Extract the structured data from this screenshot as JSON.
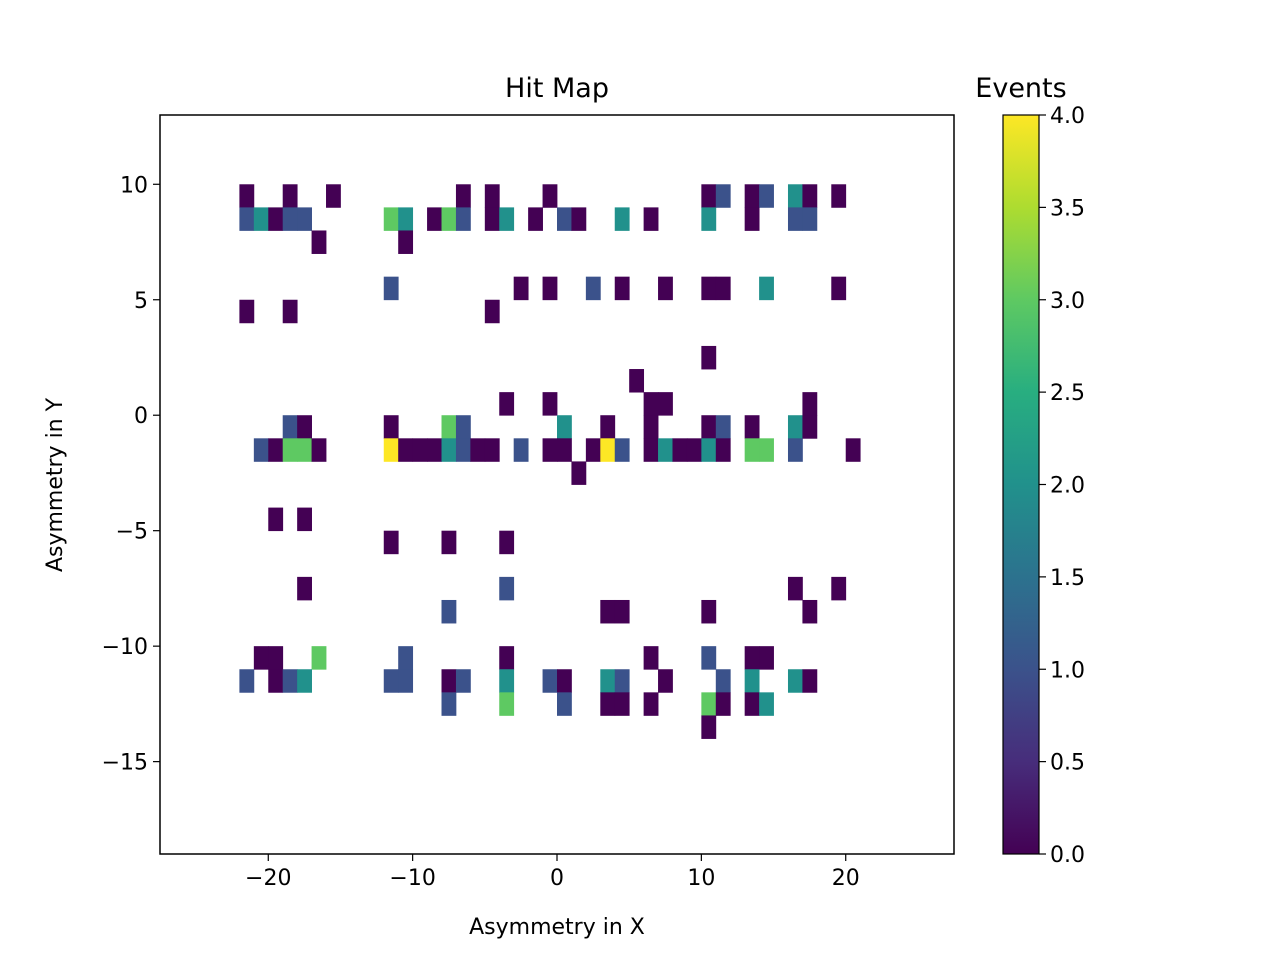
{
  "chart_data": {
    "type": "heatmap",
    "title": "Hit Map",
    "xlabel": "Asymmetry in X",
    "ylabel": "Asymmetry in Y",
    "xlim": [
      -27.5,
      27.5
    ],
    "ylim": [
      -19.0,
      13.0
    ],
    "xticks": [
      -20,
      -10,
      0,
      10,
      20
    ],
    "yticks": [
      -15,
      -10,
      -5,
      0,
      5,
      10
    ],
    "xtick_labels": [
      "−20",
      "−10",
      "0",
      "10",
      "20"
    ],
    "ytick_labels": [
      "−15",
      "−10",
      "−5",
      "0",
      "5",
      "10"
    ],
    "bin_width": 1.0,
    "bin_height": 1.0,
    "colormap": "viridis",
    "colorbar": {
      "label": "Events",
      "range": [
        0,
        4
      ],
      "ticks": [
        0.0,
        0.5,
        1.0,
        1.5,
        2.0,
        2.5,
        3.0,
        3.5,
        4.0
      ],
      "tick_labels": [
        "0.0",
        "0.5",
        "1.0",
        "1.5",
        "2.0",
        "2.5",
        "3.0",
        "3.5",
        "4.0"
      ]
    },
    "grid": false,
    "bins": [
      {
        "x": -21.5,
        "y": 9.5,
        "value": 0
      },
      {
        "x": -18.5,
        "y": 9.5,
        "value": 0
      },
      {
        "x": -15.5,
        "y": 9.5,
        "value": 0
      },
      {
        "x": -6.5,
        "y": 9.5,
        "value": 0
      },
      {
        "x": -4.5,
        "y": 9.5,
        "value": 0
      },
      {
        "x": -0.5,
        "y": 9.5,
        "value": 0
      },
      {
        "x": 10.5,
        "y": 9.5,
        "value": 0
      },
      {
        "x": 11.5,
        "y": 9.5,
        "value": 1
      },
      {
        "x": 13.5,
        "y": 9.5,
        "value": 0
      },
      {
        "x": 14.5,
        "y": 9.5,
        "value": 1
      },
      {
        "x": 16.5,
        "y": 9.5,
        "value": 2
      },
      {
        "x": 17.5,
        "y": 9.5,
        "value": 0
      },
      {
        "x": 19.5,
        "y": 9.5,
        "value": 0
      },
      {
        "x": -21.5,
        "y": 8.5,
        "value": 1
      },
      {
        "x": -20.5,
        "y": 8.5,
        "value": 2
      },
      {
        "x": -19.5,
        "y": 8.5,
        "value": 0
      },
      {
        "x": -18.5,
        "y": 8.5,
        "value": 1
      },
      {
        "x": -17.5,
        "y": 8.5,
        "value": 1
      },
      {
        "x": -11.5,
        "y": 8.5,
        "value": 3
      },
      {
        "x": -10.5,
        "y": 8.5,
        "value": 2
      },
      {
        "x": -8.5,
        "y": 8.5,
        "value": 0
      },
      {
        "x": -7.5,
        "y": 8.5,
        "value": 3
      },
      {
        "x": -6.5,
        "y": 8.5,
        "value": 1
      },
      {
        "x": -4.5,
        "y": 8.5,
        "value": 0
      },
      {
        "x": -3.5,
        "y": 8.5,
        "value": 2
      },
      {
        "x": -1.5,
        "y": 8.5,
        "value": 0
      },
      {
        "x": 0.5,
        "y": 8.5,
        "value": 1
      },
      {
        "x": 1.5,
        "y": 8.5,
        "value": 0
      },
      {
        "x": 4.5,
        "y": 8.5,
        "value": 2
      },
      {
        "x": 6.5,
        "y": 8.5,
        "value": 0
      },
      {
        "x": 10.5,
        "y": 8.5,
        "value": 2
      },
      {
        "x": 13.5,
        "y": 8.5,
        "value": 0
      },
      {
        "x": 16.5,
        "y": 8.5,
        "value": 1
      },
      {
        "x": 17.5,
        "y": 8.5,
        "value": 1
      },
      {
        "x": -16.5,
        "y": 7.5,
        "value": 0
      },
      {
        "x": -10.5,
        "y": 7.5,
        "value": 0
      },
      {
        "x": -11.5,
        "y": 5.5,
        "value": 1
      },
      {
        "x": -2.5,
        "y": 5.5,
        "value": 0
      },
      {
        "x": -0.5,
        "y": 5.5,
        "value": 0
      },
      {
        "x": 2.5,
        "y": 5.5,
        "value": 1
      },
      {
        "x": 4.5,
        "y": 5.5,
        "value": 0
      },
      {
        "x": 7.5,
        "y": 5.5,
        "value": 0
      },
      {
        "x": 10.5,
        "y": 5.5,
        "value": 0
      },
      {
        "x": 11.5,
        "y": 5.5,
        "value": 0
      },
      {
        "x": 14.5,
        "y": 5.5,
        "value": 2
      },
      {
        "x": 19.5,
        "y": 5.5,
        "value": 0
      },
      {
        "x": -21.5,
        "y": 4.5,
        "value": 0
      },
      {
        "x": -18.5,
        "y": 4.5,
        "value": 0
      },
      {
        "x": -4.5,
        "y": 4.5,
        "value": 0
      },
      {
        "x": 10.5,
        "y": 2.5,
        "value": 0
      },
      {
        "x": 5.5,
        "y": 1.5,
        "value": 0
      },
      {
        "x": -3.5,
        "y": 0.5,
        "value": 0
      },
      {
        "x": -0.5,
        "y": 0.5,
        "value": 0
      },
      {
        "x": 6.5,
        "y": 0.5,
        "value": 0
      },
      {
        "x": 7.5,
        "y": 0.5,
        "value": 0
      },
      {
        "x": 17.5,
        "y": 0.5,
        "value": 0
      },
      {
        "x": -18.5,
        "y": -0.5,
        "value": 1
      },
      {
        "x": -17.5,
        "y": -0.5,
        "value": 0
      },
      {
        "x": -11.5,
        "y": -0.5,
        "value": 0
      },
      {
        "x": -7.5,
        "y": -0.5,
        "value": 3
      },
      {
        "x": -6.5,
        "y": -0.5,
        "value": 1
      },
      {
        "x": 0.5,
        "y": -0.5,
        "value": 2
      },
      {
        "x": 3.5,
        "y": -0.5,
        "value": 0
      },
      {
        "x": 6.5,
        "y": -0.5,
        "value": 0
      },
      {
        "x": 10.5,
        "y": -0.5,
        "value": 0
      },
      {
        "x": 11.5,
        "y": -0.5,
        "value": 1
      },
      {
        "x": 13.5,
        "y": -0.5,
        "value": 0
      },
      {
        "x": 16.5,
        "y": -0.5,
        "value": 2
      },
      {
        "x": 17.5,
        "y": -0.5,
        "value": 0
      },
      {
        "x": -20.5,
        "y": -1.5,
        "value": 1
      },
      {
        "x": -19.5,
        "y": -1.5,
        "value": 0
      },
      {
        "x": -18.5,
        "y": -1.5,
        "value": 3
      },
      {
        "x": -17.5,
        "y": -1.5,
        "value": 3
      },
      {
        "x": -16.5,
        "y": -1.5,
        "value": 0
      },
      {
        "x": -11.5,
        "y": -1.5,
        "value": 4
      },
      {
        "x": -10.5,
        "y": -1.5,
        "value": 0
      },
      {
        "x": -9.5,
        "y": -1.5,
        "value": 0
      },
      {
        "x": -8.5,
        "y": -1.5,
        "value": 0
      },
      {
        "x": -7.5,
        "y": -1.5,
        "value": 2
      },
      {
        "x": -6.5,
        "y": -1.5,
        "value": 1
      },
      {
        "x": -5.5,
        "y": -1.5,
        "value": 0
      },
      {
        "x": -4.5,
        "y": -1.5,
        "value": 0
      },
      {
        "x": -2.5,
        "y": -1.5,
        "value": 1
      },
      {
        "x": -0.5,
        "y": -1.5,
        "value": 0
      },
      {
        "x": 0.5,
        "y": -1.5,
        "value": 0
      },
      {
        "x": 2.5,
        "y": -1.5,
        "value": 0
      },
      {
        "x": 3.5,
        "y": -1.5,
        "value": 4
      },
      {
        "x": 4.5,
        "y": -1.5,
        "value": 1
      },
      {
        "x": 6.5,
        "y": -1.5,
        "value": 0
      },
      {
        "x": 7.5,
        "y": -1.5,
        "value": 2
      },
      {
        "x": 8.5,
        "y": -1.5,
        "value": 0
      },
      {
        "x": 9.5,
        "y": -1.5,
        "value": 0
      },
      {
        "x": 10.5,
        "y": -1.5,
        "value": 2
      },
      {
        "x": 11.5,
        "y": -1.5,
        "value": 0
      },
      {
        "x": 13.5,
        "y": -1.5,
        "value": 3
      },
      {
        "x": 14.5,
        "y": -1.5,
        "value": 3
      },
      {
        "x": 16.5,
        "y": -1.5,
        "value": 1
      },
      {
        "x": 20.5,
        "y": -1.5,
        "value": 0
      },
      {
        "x": 1.5,
        "y": -2.5,
        "value": 0
      },
      {
        "x": -19.5,
        "y": -4.5,
        "value": 0
      },
      {
        "x": -17.5,
        "y": -4.5,
        "value": 0
      },
      {
        "x": -11.5,
        "y": -5.5,
        "value": 0
      },
      {
        "x": -7.5,
        "y": -5.5,
        "value": 0
      },
      {
        "x": -3.5,
        "y": -5.5,
        "value": 0
      },
      {
        "x": -17.5,
        "y": -7.5,
        "value": 0
      },
      {
        "x": -3.5,
        "y": -7.5,
        "value": 1
      },
      {
        "x": 16.5,
        "y": -7.5,
        "value": 0
      },
      {
        "x": 19.5,
        "y": -7.5,
        "value": 0
      },
      {
        "x": -7.5,
        "y": -8.5,
        "value": 1
      },
      {
        "x": 3.5,
        "y": -8.5,
        "value": 0
      },
      {
        "x": 4.5,
        "y": -8.5,
        "value": 0
      },
      {
        "x": 10.5,
        "y": -8.5,
        "value": 0
      },
      {
        "x": 17.5,
        "y": -8.5,
        "value": 0
      },
      {
        "x": -20.5,
        "y": -10.5,
        "value": 0
      },
      {
        "x": -19.5,
        "y": -10.5,
        "value": 0
      },
      {
        "x": -16.5,
        "y": -10.5,
        "value": 3
      },
      {
        "x": -10.5,
        "y": -10.5,
        "value": 1
      },
      {
        "x": -3.5,
        "y": -10.5,
        "value": 0
      },
      {
        "x": 6.5,
        "y": -10.5,
        "value": 0
      },
      {
        "x": 10.5,
        "y": -10.5,
        "value": 1
      },
      {
        "x": 13.5,
        "y": -10.5,
        "value": 0
      },
      {
        "x": 14.5,
        "y": -10.5,
        "value": 0
      },
      {
        "x": -21.5,
        "y": -11.5,
        "value": 1
      },
      {
        "x": -19.5,
        "y": -11.5,
        "value": 0
      },
      {
        "x": -18.5,
        "y": -11.5,
        "value": 1
      },
      {
        "x": -17.5,
        "y": -11.5,
        "value": 2
      },
      {
        "x": -11.5,
        "y": -11.5,
        "value": 1
      },
      {
        "x": -10.5,
        "y": -11.5,
        "value": 1
      },
      {
        "x": -7.5,
        "y": -11.5,
        "value": 0
      },
      {
        "x": -6.5,
        "y": -11.5,
        "value": 1
      },
      {
        "x": -3.5,
        "y": -11.5,
        "value": 2
      },
      {
        "x": -0.5,
        "y": -11.5,
        "value": 1
      },
      {
        "x": 0.5,
        "y": -11.5,
        "value": 0
      },
      {
        "x": 3.5,
        "y": -11.5,
        "value": 2
      },
      {
        "x": 4.5,
        "y": -11.5,
        "value": 1
      },
      {
        "x": 7.5,
        "y": -11.5,
        "value": 0
      },
      {
        "x": 11.5,
        "y": -11.5,
        "value": 1
      },
      {
        "x": 13.5,
        "y": -11.5,
        "value": 2
      },
      {
        "x": 16.5,
        "y": -11.5,
        "value": 2
      },
      {
        "x": 17.5,
        "y": -11.5,
        "value": 0
      },
      {
        "x": -7.5,
        "y": -12.5,
        "value": 1
      },
      {
        "x": -3.5,
        "y": -12.5,
        "value": 3
      },
      {
        "x": 0.5,
        "y": -12.5,
        "value": 1
      },
      {
        "x": 3.5,
        "y": -12.5,
        "value": 0
      },
      {
        "x": 4.5,
        "y": -12.5,
        "value": 0
      },
      {
        "x": 6.5,
        "y": -12.5,
        "value": 0
      },
      {
        "x": 10.5,
        "y": -12.5,
        "value": 3
      },
      {
        "x": 11.5,
        "y": -12.5,
        "value": 0
      },
      {
        "x": 13.5,
        "y": -12.5,
        "value": 0
      },
      {
        "x": 14.5,
        "y": -12.5,
        "value": 2
      },
      {
        "x": 10.5,
        "y": -13.5,
        "value": 0
      }
    ]
  }
}
